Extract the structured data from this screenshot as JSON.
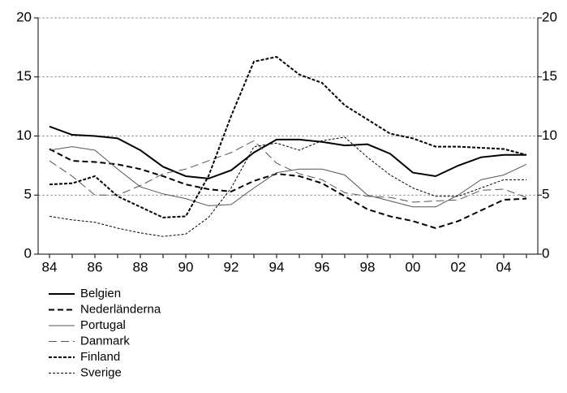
{
  "chart_data": {
    "type": "line",
    "categories": [
      "84",
      null,
      "86",
      null,
      "88",
      null,
      "90",
      null,
      "92",
      null,
      "94",
      null,
      "96",
      null,
      "98",
      null,
      "00",
      null,
      "02",
      null,
      "04",
      null
    ],
    "series": [
      {
        "name": "Belgien",
        "color": "#000000",
        "style": "solid",
        "weight": "bold",
        "values": [
          10.8,
          10.1,
          10.0,
          9.8,
          8.8,
          7.4,
          6.6,
          6.4,
          7.1,
          8.6,
          9.7,
          9.7,
          9.5,
          9.2,
          9.3,
          8.5,
          6.9,
          6.6,
          7.5,
          8.2,
          8.4,
          8.4
        ]
      },
      {
        "name": "Nederländerna",
        "color": "#000000",
        "style": "dashed",
        "weight": "bold",
        "values": [
          8.9,
          7.9,
          7.8,
          7.6,
          7.2,
          6.6,
          5.9,
          5.5,
          5.3,
          6.2,
          6.8,
          6.6,
          6.0,
          4.9,
          3.8,
          3.2,
          2.8,
          2.2,
          2.8,
          3.7,
          4.6,
          4.7
        ]
      },
      {
        "name": "Portugal",
        "color": "#555555",
        "style": "solid",
        "weight": "thin",
        "values": [
          8.8,
          9.1,
          8.8,
          7.2,
          5.7,
          5.1,
          4.7,
          4.1,
          4.2,
          5.6,
          6.9,
          7.2,
          7.2,
          6.7,
          5.0,
          4.5,
          4.0,
          4.0,
          5.0,
          6.3,
          6.7,
          7.6
        ]
      },
      {
        "name": "Danmark",
        "color": "#555555",
        "style": "dashed",
        "weight": "thin",
        "values": [
          7.9,
          6.6,
          5.0,
          5.0,
          5.8,
          6.8,
          7.2,
          7.9,
          8.6,
          9.6,
          7.7,
          6.8,
          6.3,
          5.2,
          4.9,
          4.8,
          4.4,
          4.5,
          4.6,
          5.4,
          5.5,
          4.8
        ]
      },
      {
        "name": "Finland",
        "color": "#000000",
        "style": "dotted",
        "weight": "bold",
        "values": [
          5.9,
          6.0,
          6.6,
          4.9,
          4.0,
          3.1,
          3.2,
          6.6,
          11.7,
          16.3,
          16.7,
          15.2,
          14.5,
          12.6,
          11.4,
          10.2,
          9.8,
          9.1,
          9.1,
          9.0,
          8.9,
          8.4
        ]
      },
      {
        "name": "Sverige",
        "color": "#000000",
        "style": "dotted",
        "weight": "thin",
        "values": [
          3.2,
          2.9,
          2.7,
          2.2,
          1.8,
          1.5,
          1.7,
          3.1,
          5.6,
          9.1,
          9.4,
          8.8,
          9.6,
          9.9,
          8.2,
          6.7,
          5.6,
          4.9,
          4.9,
          5.6,
          6.3,
          6.3
        ]
      }
    ],
    "ylim": [
      0,
      20
    ],
    "yticks": [
      0,
      5,
      10,
      15,
      20
    ],
    "y2lim": [
      0,
      20
    ],
    "y2ticks": [
      0,
      5,
      10,
      15,
      20
    ],
    "grid": true
  }
}
